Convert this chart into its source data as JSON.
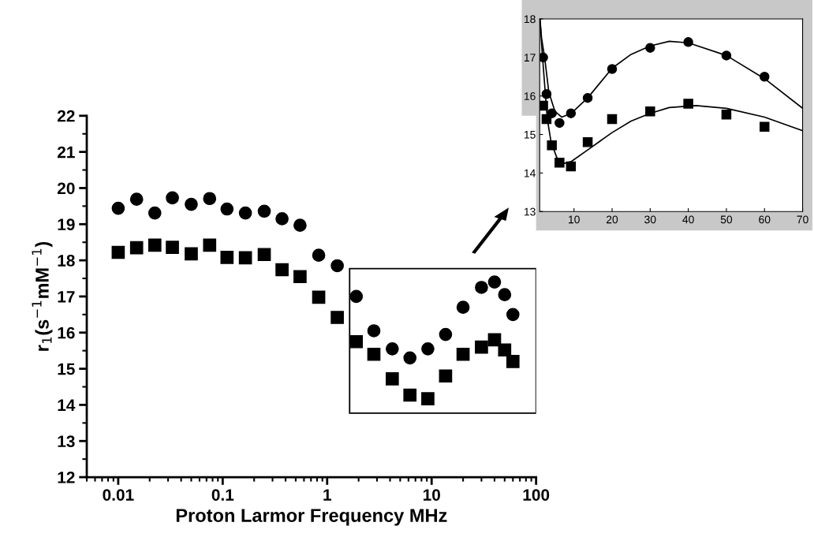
{
  "chart_data": [
    {
      "type": "scatter",
      "xlabel": "Proton Larmor Frequency MHz",
      "ylabel": "r$_{1}$(s$^{−1}$mM$^{−1}$)",
      "log": "x",
      "xlim": [
        0.005,
        100
      ],
      "xticks": [
        0.01,
        0.1,
        1,
        10,
        100
      ],
      "ylim": [
        12,
        22
      ],
      "yticks": [
        12,
        13,
        14,
        15,
        16,
        17,
        18,
        19,
        20,
        21,
        22
      ],
      "grid": false,
      "x": [
        0.01,
        0.015,
        0.0224,
        0.033,
        0.05,
        0.075,
        0.11,
        0.165,
        0.25,
        0.37,
        0.55,
        0.83,
        1.25,
        1.9,
        2.8,
        4.2,
        6.2,
        9.2,
        13.6,
        20,
        30,
        40,
        50,
        60
      ],
      "series": [
        {
          "color": "#000000",
          "marker": "circle",
          "values": [
            19.44,
            19.69,
            19.31,
            19.73,
            19.55,
            19.71,
            19.42,
            19.31,
            19.36,
            19.15,
            18.97,
            18.14,
            17.85,
            17.0,
            16.05,
            15.55,
            15.3,
            15.55,
            15.95,
            16.7,
            17.25,
            17.4,
            17.05,
            16.5
          ]
        },
        {
          "color": "#000000",
          "marker": "square",
          "values": [
            18.22,
            18.35,
            18.42,
            18.36,
            18.18,
            18.42,
            18.08,
            18.07,
            18.16,
            17.74,
            17.55,
            16.98,
            16.42,
            15.75,
            15.4,
            14.72,
            14.27,
            14.17,
            14.8,
            15.4,
            15.6,
            15.8,
            15.52,
            15.2
          ]
        }
      ]
    },
    {
      "type": "scatter",
      "xlim": [
        1,
        70
      ],
      "xticks": [
        10,
        20,
        30,
        40,
        50,
        60,
        70
      ],
      "ylim": [
        13,
        18
      ],
      "yticks": [
        13,
        14,
        15,
        16,
        17,
        18
      ],
      "grid": false,
      "x": [
        1.9,
        2.8,
        4.2,
        6.2,
        9.2,
        13.6,
        20,
        30,
        40,
        50,
        60
      ],
      "series": [
        {
          "color": "#000000",
          "marker": "circle",
          "values": [
            17.0,
            16.05,
            15.55,
            15.3,
            15.55,
            15.95,
            16.7,
            17.25,
            17.4,
            17.05,
            16.5
          ]
        },
        {
          "color": "#000000",
          "marker": "square",
          "values": [
            15.75,
            15.4,
            14.72,
            14.27,
            14.17,
            14.8,
            15.4,
            15.6,
            15.8,
            15.52,
            15.2
          ]
        },
        {
          "type": "line",
          "color": "#000000",
          "x": [
            1.05,
            1.5,
            2.3,
            3.4,
            5,
            6.8,
            9.3,
            13.6,
            20,
            25,
            30,
            35,
            40,
            50,
            60,
            70
          ],
          "values": [
            18.0,
            17.5,
            17.0,
            16.1,
            15.6,
            15.45,
            15.55,
            15.95,
            16.72,
            17.08,
            17.3,
            17.42,
            17.38,
            17.05,
            16.45,
            15.68
          ]
        },
        {
          "type": "line",
          "color": "#000000",
          "x": [
            1.1,
            1.6,
            2.3,
            3,
            4,
            5.5,
            7.5,
            9.3,
            13.6,
            20,
            25,
            30,
            35,
            42,
            50,
            60,
            70
          ],
          "values": [
            18.0,
            17.2,
            16.3,
            15.4,
            14.8,
            14.4,
            14.25,
            14.3,
            14.6,
            15.05,
            15.35,
            15.55,
            15.7,
            15.75,
            15.68,
            15.45,
            15.1
          ]
        }
      ]
    }
  ]
}
